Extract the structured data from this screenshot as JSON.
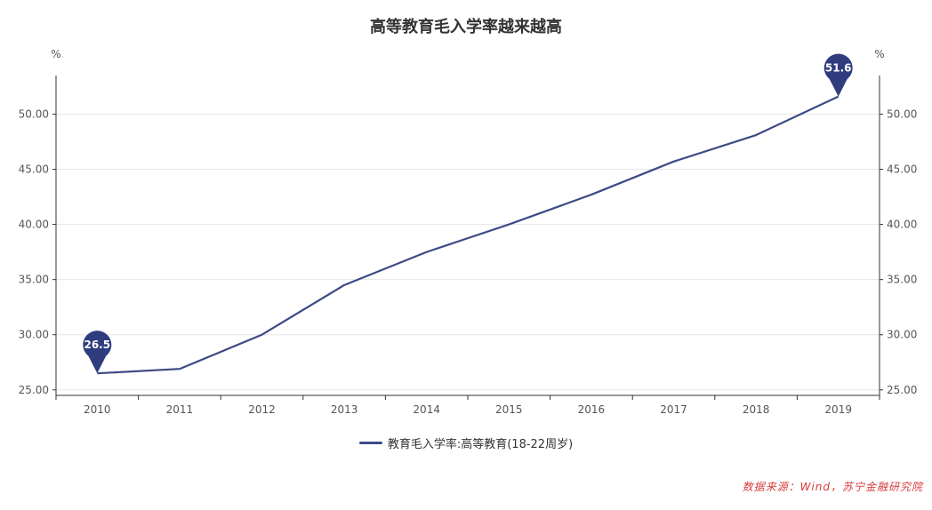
{
  "chart_data": {
    "type": "line",
    "title": "高等教育毛入学率越来越高",
    "x": [
      "2010",
      "2011",
      "2012",
      "2013",
      "2014",
      "2015",
      "2016",
      "2017",
      "2018",
      "2019"
    ],
    "series": [
      {
        "name": "教育毛入学率:高等教育(18-22周岁)",
        "values": [
          26.5,
          26.9,
          30.0,
          34.5,
          37.5,
          40.0,
          42.7,
          45.7,
          48.1,
          51.6
        ]
      }
    ],
    "ylim": [
      24.5,
      53.5
    ],
    "yticks": [
      "25.00",
      "30.00",
      "35.00",
      "40.00",
      "45.00",
      "50.00"
    ],
    "y_unit_left": "%",
    "y_unit_right": "%",
    "markers": [
      {
        "x": "2010",
        "label": "26.5"
      },
      {
        "x": "2019",
        "label": "51.6"
      }
    ],
    "grid": true,
    "legend_position": "bottom-center",
    "line_color": "#3e4a85",
    "marker_color": "#2f3c7e"
  },
  "source_note": "数据来源：Wind，苏宁金融研究院"
}
